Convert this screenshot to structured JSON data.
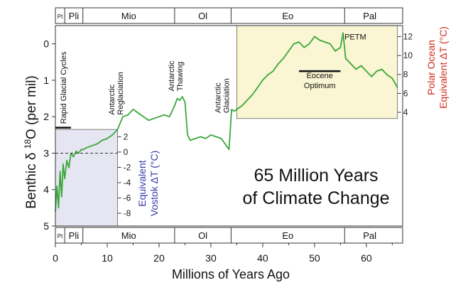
{
  "chart_data": {
    "type": "line",
    "title_lines": [
      "65 Million Years",
      "of Climate Change"
    ],
    "xlabel": "Millions of Years Ago",
    "ylabel": "Benthic δ 18O (per mil)",
    "ylabel_parts": {
      "pre": "Benthic δ ",
      "sup": "18",
      "post": "O (per mil)"
    },
    "xlim": [
      0,
      67
    ],
    "ylim_inverted": [
      -0.5,
      5
    ],
    "x_ticks": [
      "0",
      "10",
      "20",
      "30",
      "40",
      "50",
      "60"
    ],
    "x_tick_values": [
      0,
      10,
      20,
      30,
      40,
      50,
      60
    ],
    "y_ticks": [
      "0",
      "1",
      "2",
      "3",
      "4",
      "5"
    ],
    "y_tick_values": [
      0,
      1,
      2,
      3,
      4,
      5
    ],
    "grid": false,
    "epochs": [
      {
        "label": "Pt",
        "start": 0,
        "end": 1.8
      },
      {
        "label": "Pli",
        "start": 1.8,
        "end": 5.3
      },
      {
        "label": "Mio",
        "start": 5.3,
        "end": 23
      },
      {
        "label": "Ol",
        "start": 23,
        "end": 33.9
      },
      {
        "label": "Eo",
        "start": 33.9,
        "end": 55.8
      },
      {
        "label": "Pal",
        "start": 55.8,
        "end": 65.5
      }
    ],
    "annotations": [
      {
        "text": "Rapid Glacial Cycles",
        "x": 1.5,
        "y": 2.35
      },
      {
        "text": "Antarctic Reglaciation",
        "x": 13,
        "y": 1.95
      },
      {
        "text": "Antarctic Thawing",
        "x": 24.5,
        "y": 1.3
      },
      {
        "text": "Antarctic Glaciation",
        "x": 33.5,
        "y": 1.9
      },
      {
        "text": "PETM",
        "x": 55.5,
        "y": -0.2
      },
      {
        "text": "Eocene Optimum",
        "x": 51,
        "y": 0.9
      }
    ],
    "bars": [
      {
        "label": "Rapid Glacial Cycles",
        "x0": 0,
        "x1": 3,
        "y": 2.3
      },
      {
        "label": "Eocene Optimum",
        "x0": 47,
        "x1": 55,
        "y": 0.75
      }
    ],
    "series": [
      {
        "name": "",
        "color": "#3aa83a",
        "x": [
          0.0,
          0.3,
          0.6,
          0.9,
          1.2,
          1.5,
          1.8,
          2.2,
          2.6,
          3.0,
          3.5,
          4.0,
          4.5,
          5.0,
          5.5,
          6.0,
          7.0,
          8.0,
          9.0,
          10.0,
          11.0,
          12.0,
          13.0,
          14.0,
          15.0,
          16.0,
          17.0,
          18.0,
          19.0,
          20.0,
          21.0,
          22.0,
          23.0,
          23.5,
          24.0,
          24.5,
          25.0,
          25.5,
          26.0,
          27.0,
          28.0,
          29.0,
          30.0,
          31.0,
          32.0,
          33.0,
          33.5,
          34.0,
          34.5,
          35.0,
          36.0,
          37.0,
          38.0,
          39.0,
          40.0,
          41.0,
          42.0,
          43.0,
          44.0,
          45.0,
          46.0,
          47.0,
          48.0,
          49.0,
          50.0,
          51.0,
          52.0,
          53.0,
          54.0,
          55.0,
          55.5,
          56.0,
          57.0,
          58.0,
          59.0,
          60.0,
          61.0,
          62.0,
          63.0,
          64.0,
          65.0,
          66.0
        ],
        "y": [
          4.6,
          3.9,
          4.5,
          3.5,
          4.2,
          3.3,
          3.7,
          3.2,
          3.4,
          3.0,
          3.1,
          2.95,
          3.0,
          2.9,
          2.9,
          2.85,
          2.8,
          2.75,
          2.65,
          2.6,
          2.5,
          2.35,
          2.0,
          1.95,
          1.8,
          1.9,
          2.0,
          2.1,
          2.05,
          2.0,
          1.95,
          2.0,
          1.7,
          1.5,
          1.55,
          1.45,
          1.6,
          2.5,
          2.65,
          2.6,
          2.55,
          2.6,
          2.5,
          2.55,
          2.6,
          2.8,
          2.9,
          1.8,
          1.85,
          1.8,
          1.7,
          1.55,
          1.4,
          1.2,
          1.0,
          0.85,
          0.75,
          0.55,
          0.4,
          0.2,
          0.0,
          -0.05,
          0.1,
          0.0,
          -0.2,
          -0.1,
          -0.05,
          0.0,
          0.2,
          0.1,
          -0.3,
          0.4,
          0.55,
          0.7,
          0.6,
          0.75,
          0.9,
          0.75,
          0.7,
          0.85,
          0.95,
          1.2
        ]
      }
    ],
    "secondary_axes": [
      {
        "label_lines": [
          "Polar Ocean",
          "Equivalent ΔT (°C)"
        ],
        "color": "#d03020",
        "ticks": [
          "12",
          "10",
          "8",
          "6",
          "4"
        ],
        "tick_y": [
          -0.2,
          0.32,
          0.84,
          1.36,
          1.88
        ],
        "x_range": [
          35,
          66
        ],
        "fill": "#faf5d2"
      },
      {
        "label_lines": [
          "Equivalent",
          "Vostok ΔT (°C)"
        ],
        "color": "#3a3aaa",
        "ticks": [
          "2",
          "0",
          "-2",
          "-4",
          "-6",
          "-8"
        ],
        "tick_y": [
          2.55,
          2.97,
          3.39,
          3.81,
          4.23,
          4.65
        ],
        "x_range": [
          0,
          12
        ],
        "fill": "#e6e6f2",
        "dashed_zero_y": 3.0
      }
    ]
  }
}
